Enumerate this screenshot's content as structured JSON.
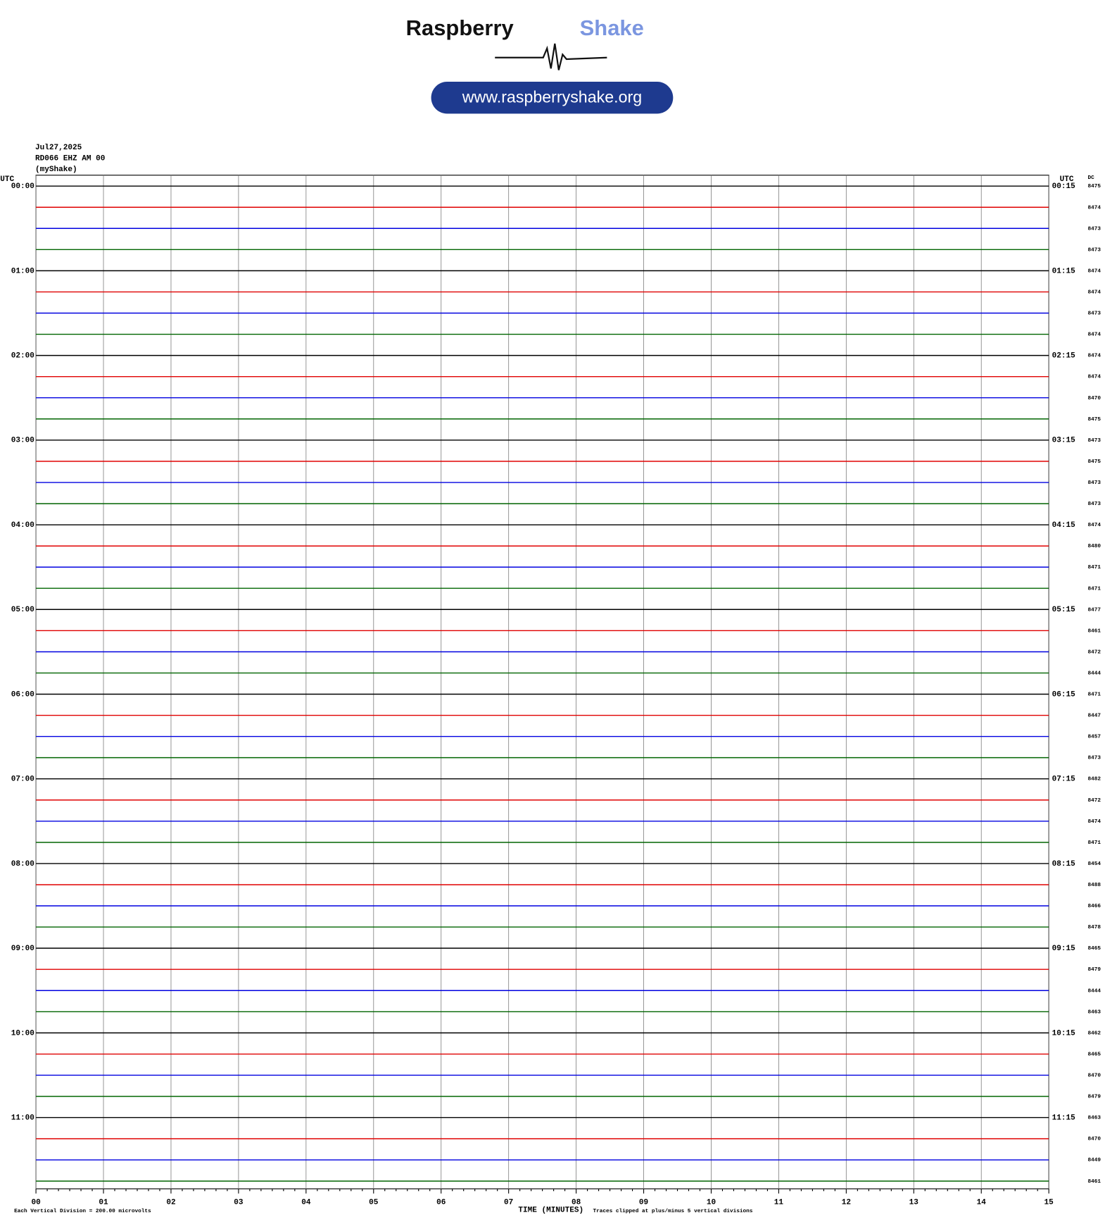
{
  "header": {
    "brand_dark": "Raspberry",
    "brand_light": "Shake",
    "url": "www.raspberryshake.org"
  },
  "chart_data": {
    "type": "helicorder",
    "date": "Jul27,2025",
    "station": "RD066 EHZ AM 00",
    "source": "(myShake)",
    "left_axis_title": "UTC",
    "right_axis_title": "UTC",
    "dc_title": "DC",
    "xlabel": "TIME (MINUTES)",
    "scale_note": "Each Vertical Division =  200.00 microvolts",
    "clip_note": "Traces clipped at plus/minus 5 vertical divisions",
    "xlim": [
      0,
      15
    ],
    "xticks": [
      {
        "value": 0,
        "label": "00"
      },
      {
        "value": 1,
        "label": "01"
      },
      {
        "value": 2,
        "label": "02"
      },
      {
        "value": 3,
        "label": "03"
      },
      {
        "value": 4,
        "label": "04"
      },
      {
        "value": 5,
        "label": "05"
      },
      {
        "value": 6,
        "label": "06"
      },
      {
        "value": 7,
        "label": "07"
      },
      {
        "value": 8,
        "label": "08"
      },
      {
        "value": 9,
        "label": "09"
      },
      {
        "value": 10,
        "label": "10"
      },
      {
        "value": 11,
        "label": "11"
      },
      {
        "value": 12,
        "label": "12"
      },
      {
        "value": 13,
        "label": "13"
      },
      {
        "value": 14,
        "label": "14"
      },
      {
        "value": 15,
        "label": "15"
      }
    ],
    "left_labels": [
      "00:00",
      "01:00",
      "02:00",
      "03:00",
      "04:00",
      "05:00",
      "06:00",
      "07:00",
      "08:00",
      "09:00",
      "10:00",
      "11:00"
    ],
    "right_labels": [
      "00:15",
      "01:15",
      "02:15",
      "03:15",
      "04:15",
      "05:15",
      "06:15",
      "07:15",
      "08:15",
      "09:15",
      "10:15",
      "11:15"
    ],
    "dc_values": [
      8475,
      8474,
      8473,
      8473,
      8474,
      8474,
      8473,
      8474,
      8474,
      8474,
      8470,
      8475,
      8473,
      8475,
      8473,
      8473,
      8474,
      8480,
      8471,
      8471,
      8477,
      8461,
      8472,
      8444,
      8471,
      8447,
      8457,
      8473,
      8482,
      8472,
      8474,
      8471,
      8454,
      8488,
      8466,
      8478,
      8465,
      8479,
      8444,
      8463,
      8462,
      8465,
      8470,
      8479,
      8463,
      8470,
      8449,
      8461
    ],
    "trace_colors": [
      "#000000",
      "#e00000",
      "#0000e0",
      "#006400"
    ],
    "grid": true
  }
}
